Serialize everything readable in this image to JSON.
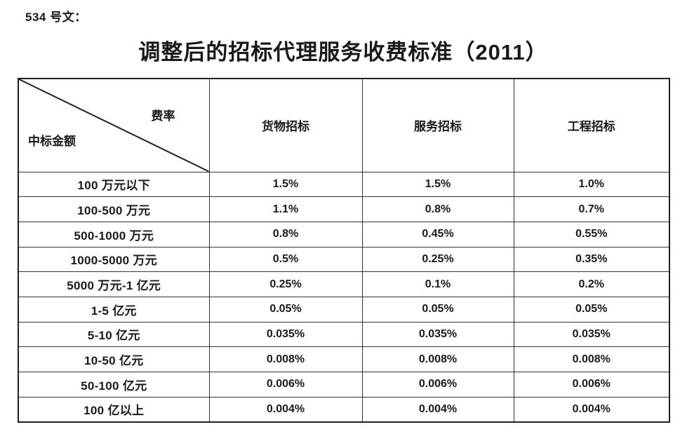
{
  "page": {
    "doc_label": "534 号文：",
    "title": "调整后的招标代理服务收费标准（2011）"
  },
  "table": {
    "corner": {
      "top_right": "费率",
      "bottom_left": "中标金额"
    },
    "columns": [
      "货物招标",
      "服务招标",
      "工程招标"
    ],
    "rows": [
      {
        "label": "100 万元以下",
        "values": [
          "1.5%",
          "1.5%",
          "1.0%"
        ]
      },
      {
        "label": "100-500 万元",
        "values": [
          "1.1%",
          "0.8%",
          "0.7%"
        ]
      },
      {
        "label": "500-1000 万元",
        "values": [
          "0.8%",
          "0.45%",
          "0.55%"
        ]
      },
      {
        "label": "1000-5000 万元",
        "values": [
          "0.5%",
          "0.25%",
          "0.35%"
        ]
      },
      {
        "label": "5000 万元-1 亿元",
        "values": [
          "0.25%",
          "0.1%",
          "0.2%"
        ]
      },
      {
        "label": "1-5 亿元",
        "values": [
          "0.05%",
          "0.05%",
          "0.05%"
        ]
      },
      {
        "label": "5-10 亿元",
        "values": [
          "0.035%",
          "0.035%",
          "0.035%"
        ]
      },
      {
        "label": "10-50 亿元",
        "values": [
          "0.008%",
          "0.008%",
          "0.008%"
        ]
      },
      {
        "label": "50-100 亿元",
        "values": [
          "0.006%",
          "0.006%",
          "0.006%"
        ]
      },
      {
        "label": "100 亿以上",
        "values": [
          "0.004%",
          "0.004%",
          "0.004%"
        ]
      }
    ]
  },
  "colors": {
    "text": "#1a1a1a",
    "border": "#333333",
    "outer_border": "#222222",
    "background": "#ffffff"
  }
}
